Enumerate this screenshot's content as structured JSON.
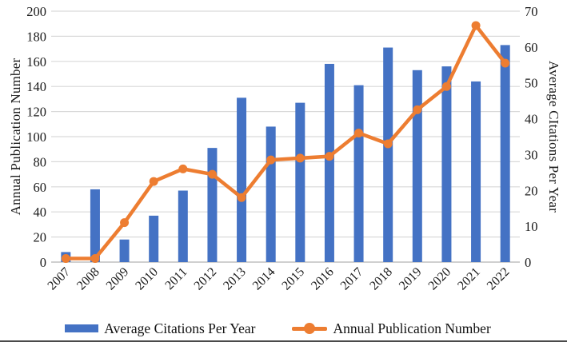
{
  "chart_data": {
    "type": "bar",
    "subtype": "combo-bar-line",
    "categories": [
      "2007",
      "2008",
      "2009",
      "2010",
      "2011",
      "2012",
      "2013",
      "2014",
      "2015",
      "2016",
      "2017",
      "2018",
      "2019",
      "2020",
      "2021",
      "2022"
    ],
    "series": [
      {
        "name": "bars",
        "legend_label": "Average Citations Per Year",
        "type": "bar",
        "axis": "left",
        "color": "#4472C4",
        "values": [
          8,
          58,
          18,
          37,
          57,
          91,
          131,
          108,
          127,
          158,
          141,
          171,
          153,
          156,
          144,
          173
        ]
      },
      {
        "name": "line",
        "legend_label": "Annual Publication Number",
        "type": "line",
        "axis": "right",
        "color": "#ED7D31",
        "values": [
          1,
          1,
          11,
          22.5,
          26,
          24.5,
          18,
          28.5,
          29,
          29.5,
          36,
          33,
          42.5,
          49,
          66,
          55.5
        ]
      }
    ],
    "left_axis": {
      "title": "Annual Publication Number",
      "min": 0,
      "max": 200,
      "step": 20,
      "tick_labels": [
        "0",
        "20",
        "40",
        "60",
        "80",
        "100",
        "120",
        "140",
        "160",
        "180",
        "200"
      ]
    },
    "right_axis": {
      "title": "Average CItations Per Year",
      "min": 0,
      "max": 70,
      "step": 10,
      "tick_labels": [
        "0",
        "10",
        "20",
        "30",
        "40",
        "50",
        "60",
        "70"
      ]
    },
    "xlabel": "",
    "title": "",
    "grid": "horizontal-only",
    "gridline_color": "#D9D9D9",
    "baseline_color": "#C0C0C0",
    "text_color": "#1a1a1a",
    "legend_position": "bottom"
  }
}
